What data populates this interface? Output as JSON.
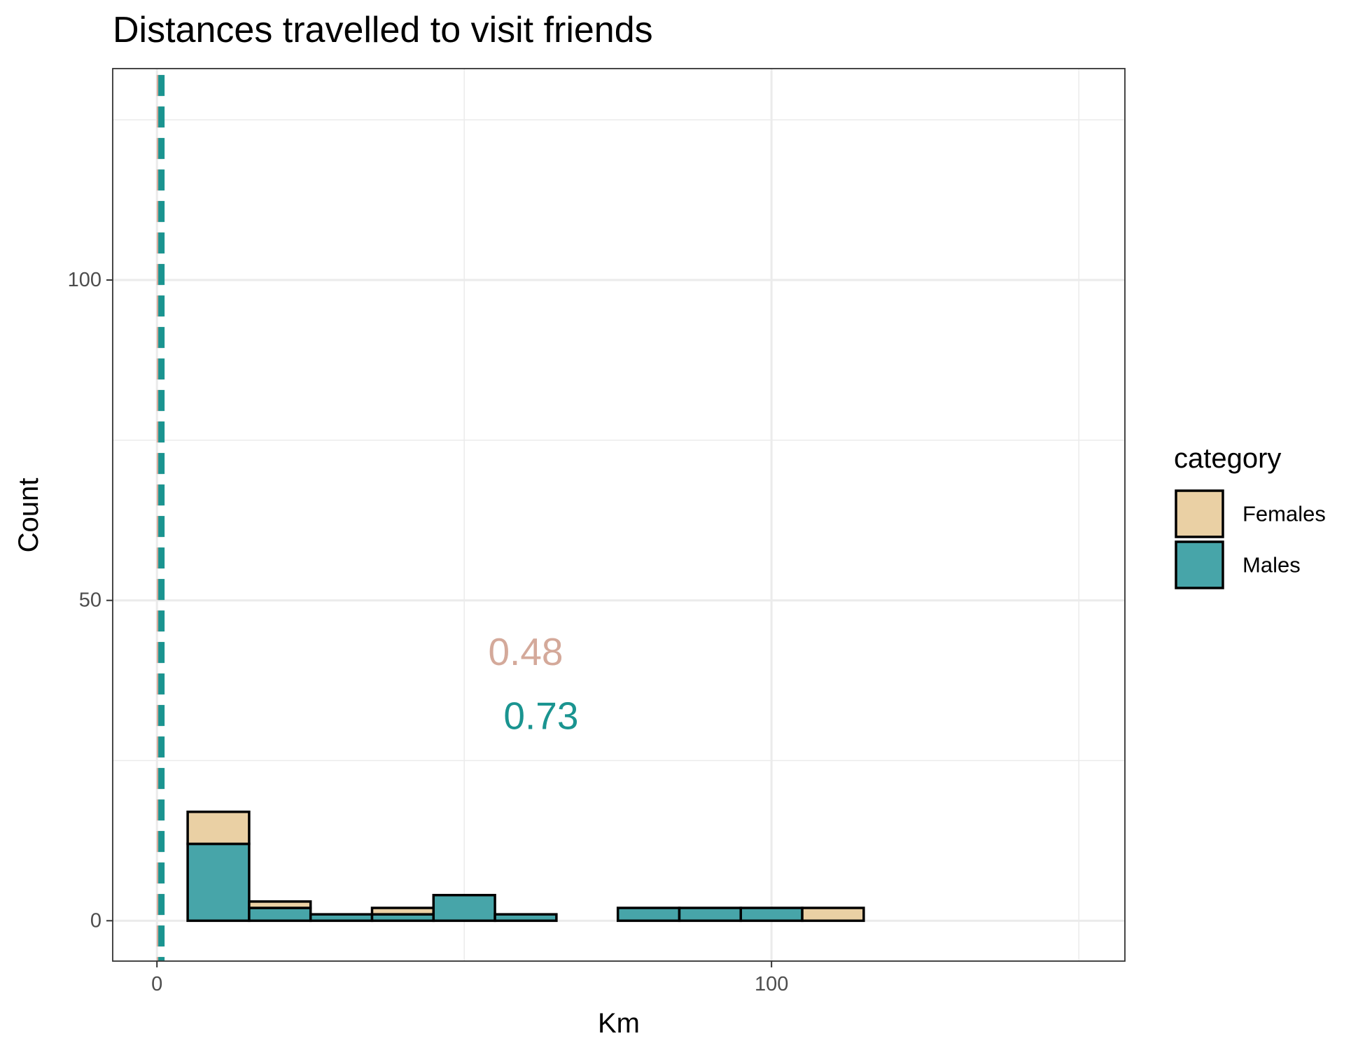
{
  "chart_data": {
    "type": "bar",
    "title": "Distances travelled to visit friends",
    "xlabel": "Km",
    "ylabel": "Count",
    "stacked": true,
    "bin_width": 10,
    "bins": [
      [
        5,
        15
      ],
      [
        15,
        25
      ],
      [
        25,
        35
      ],
      [
        35,
        45
      ],
      [
        45,
        55
      ],
      [
        55,
        65
      ],
      [
        65,
        75
      ],
      [
        75,
        85
      ],
      [
        85,
        95
      ],
      [
        95,
        105
      ],
      [
        105,
        115
      ],
      [
        115,
        125
      ],
      [
        125,
        135
      ],
      [
        135,
        145
      ]
    ],
    "series": [
      {
        "name": "Males",
        "color": "#47a5a9",
        "values": [
          12,
          2,
          1,
          1,
          4,
          1,
          0,
          2,
          2,
          2,
          0,
          0,
          0,
          0
        ]
      },
      {
        "name": "Females",
        "color": "#ead0a4",
        "values": [
          5,
          1,
          0,
          1,
          0,
          0,
          0,
          0,
          0,
          0,
          2,
          0,
          0,
          0
        ]
      }
    ],
    "xlim": [
      -7.2,
      157.5
    ],
    "ylim": [
      -6.3,
      133
    ],
    "x_ticks": [
      0,
      100
    ],
    "y_ticks": [
      0,
      50,
      100
    ],
    "grid": true,
    "legend": {
      "title": "category",
      "position": "right",
      "entries": [
        "Females",
        "Males"
      ]
    },
    "reference_lines": [
      {
        "x": 0.48,
        "color": "#d4a99a",
        "style": "dashed"
      },
      {
        "x": 0.73,
        "color": "#1a9490",
        "style": "dashed"
      }
    ],
    "annotations": [
      {
        "text": "0.48",
        "x": 60,
        "y": 42,
        "color": "#d4a99a"
      },
      {
        "text": "0.73",
        "x": 62.5,
        "y": 32,
        "color": "#1a9490"
      }
    ]
  }
}
